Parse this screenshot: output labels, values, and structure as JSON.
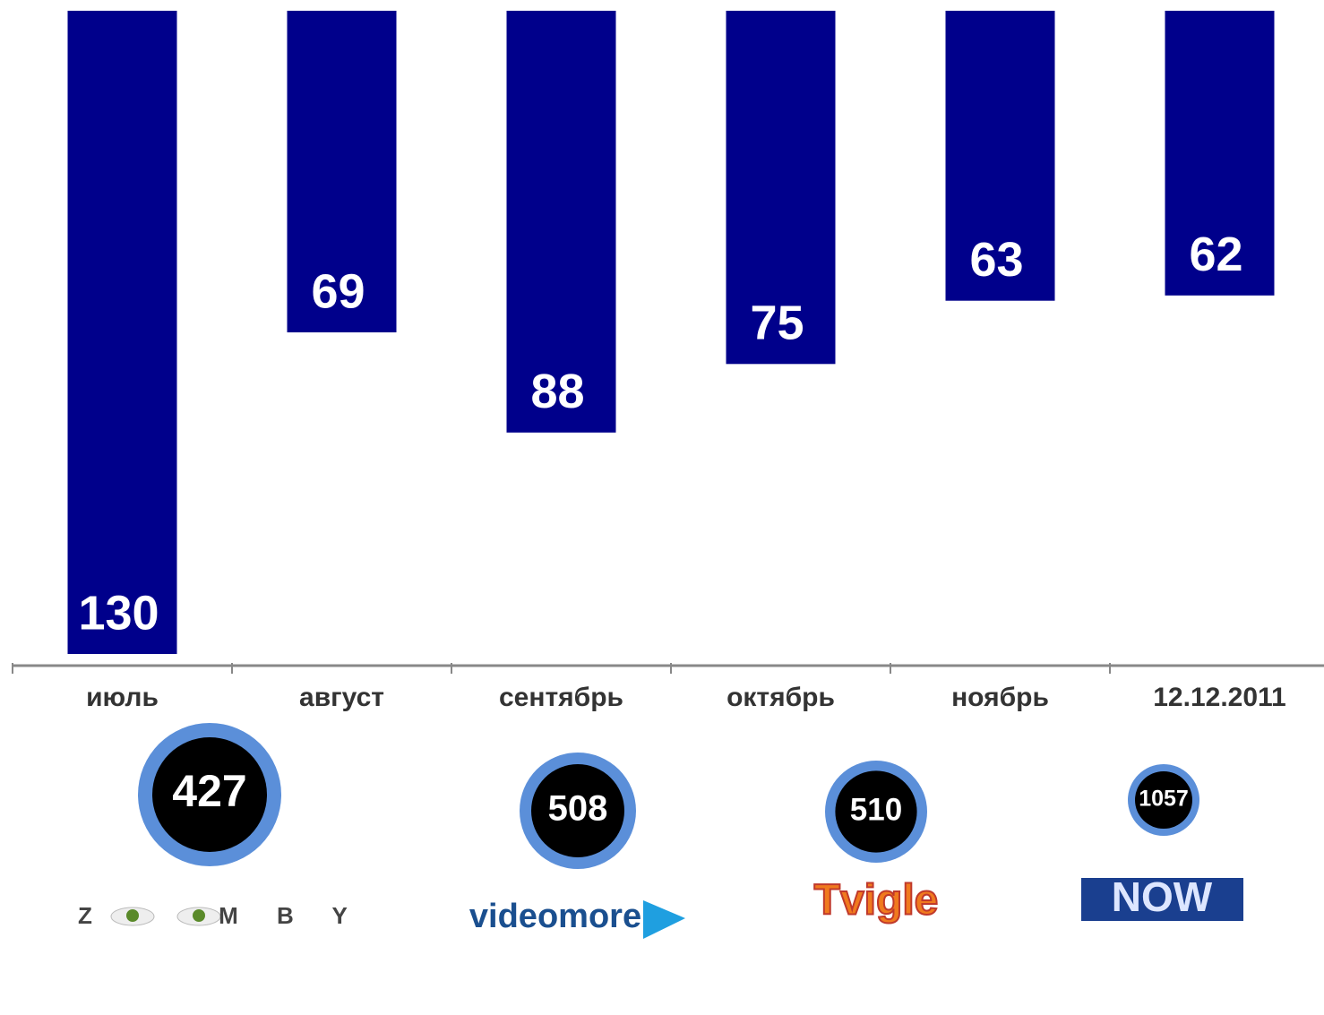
{
  "chart_data": {
    "type": "bar",
    "categories": [
      "июль",
      "август",
      "сентябрь",
      "октябрь",
      "ноябрь",
      "12.12.2011"
    ],
    "values": [
      130,
      69,
      88,
      75,
      63,
      62
    ],
    "color": "#00008b",
    "ylim": [
      8,
      130
    ],
    "inverted": true,
    "providers": [
      {
        "value": 427,
        "logo": [
          "Z",
          "M B Y"
        ]
      },
      {
        "value": 508,
        "logo": [
          "videomore"
        ]
      },
      {
        "value": 510,
        "logo": [
          "Tvigle"
        ]
      },
      {
        "value": 1057,
        "logo": [
          "NOW"
        ]
      }
    ]
  }
}
